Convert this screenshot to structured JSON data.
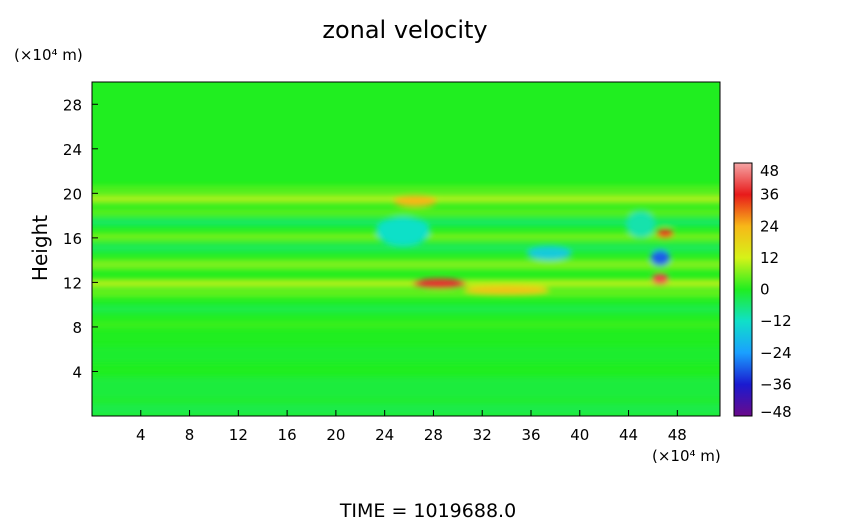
{
  "chart_data": {
    "type": "heatmap",
    "title": "zonal velocity",
    "xlabel": "",
    "ylabel": "Height",
    "x_unit": "(×10⁴ m)",
    "y_unit": "(×10⁴ m)",
    "xlim": [
      0,
      51.5
    ],
    "ylim": [
      0,
      30
    ],
    "x_ticks": [
      4,
      8,
      12,
      16,
      20,
      24,
      28,
      32,
      36,
      40,
      44,
      48
    ],
    "y_ticks": [
      4,
      8,
      12,
      16,
      20,
      24,
      28
    ],
    "colorbar": {
      "ticks": [
        48,
        36,
        24,
        12,
        0,
        -12,
        -24,
        -36,
        -48
      ],
      "range": [
        -48,
        48
      ],
      "colors": [
        "#6a0a8a",
        "#1a1ad0",
        "#1aa0ff",
        "#10e0c8",
        "#20ee20",
        "#d6f218",
        "#f7b818",
        "#e81a1a",
        "#f5a5a5"
      ]
    },
    "bands": [
      {
        "y_center": 0.6,
        "width": 1.2,
        "value": -3
      },
      {
        "y_center": 2.5,
        "width": 2.0,
        "value": -2
      },
      {
        "y_center": 5.5,
        "width": 1.5,
        "value": -1
      },
      {
        "y_center": 8.2,
        "width": 0.6,
        "value": 2
      },
      {
        "y_center": 9.6,
        "width": 0.8,
        "value": -3
      },
      {
        "y_center": 11.0,
        "width": 0.6,
        "value": 5
      },
      {
        "y_center": 11.9,
        "width": 0.7,
        "value": 10
      },
      {
        "y_center": 13.6,
        "width": 0.9,
        "value": 6
      },
      {
        "y_center": 15.1,
        "width": 0.8,
        "value": -4
      },
      {
        "y_center": 16.1,
        "width": 0.6,
        "value": 6
      },
      {
        "y_center": 17.4,
        "width": 0.7,
        "value": -5
      },
      {
        "y_center": 18.3,
        "width": 0.6,
        "value": 4
      },
      {
        "y_center": 19.5,
        "width": 0.8,
        "value": 9
      },
      {
        "y_center": 20.4,
        "width": 0.5,
        "value": 4
      }
    ],
    "features": [
      {
        "x": 28.5,
        "y": 11.9,
        "rx": 2.2,
        "ry": 0.45,
        "value": 38
      },
      {
        "x": 34.0,
        "y": 11.3,
        "rx": 3.5,
        "ry": 0.4,
        "value": 22
      },
      {
        "x": 26.5,
        "y": 19.3,
        "rx": 1.8,
        "ry": 0.5,
        "value": 24
      },
      {
        "x": 25.5,
        "y": 16.6,
        "rx": 2.2,
        "ry": 1.3,
        "value": -12
      },
      {
        "x": 37.5,
        "y": 14.6,
        "rx": 1.8,
        "ry": 0.6,
        "value": -16
      },
      {
        "x": 46.6,
        "y": 14.2,
        "rx": 0.8,
        "ry": 0.7,
        "value": -30
      },
      {
        "x": 47.0,
        "y": 16.4,
        "rx": 0.7,
        "ry": 0.4,
        "value": 34
      },
      {
        "x": 46.6,
        "y": 12.3,
        "rx": 0.7,
        "ry": 0.5,
        "value": 40
      },
      {
        "x": 45.0,
        "y": 17.2,
        "rx": 1.2,
        "ry": 1.2,
        "value": -10
      }
    ],
    "background_value": 0
  },
  "footer": {
    "time_label": "TIME = 1019688.0"
  }
}
